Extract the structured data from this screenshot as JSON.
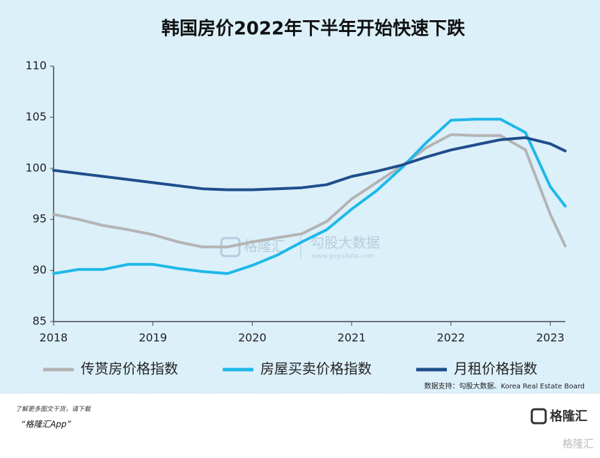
{
  "chart_data": {
    "type": "line",
    "title": "韩国房价2022年下半年开始快速下跌",
    "x": [
      2018,
      2018.25,
      2018.5,
      2018.75,
      2019,
      2019.25,
      2019.5,
      2019.75,
      2020,
      2020.25,
      2020.5,
      2020.75,
      2021,
      2021.25,
      2021.5,
      2021.75,
      2022,
      2022.25,
      2022.5,
      2022.75,
      2023,
      2023.15
    ],
    "xlim": [
      2018,
      2023.15
    ],
    "xticks": [
      2018,
      2019,
      2020,
      2021,
      2022,
      2023
    ],
    "ylim": [
      85,
      110
    ],
    "yticks": [
      85,
      90,
      95,
      100,
      105,
      110
    ],
    "series": [
      {
        "name": "传贳房价格指数",
        "color": "#b4b4b4",
        "values": [
          95.5,
          95.0,
          94.4,
          94.0,
          93.5,
          92.8,
          92.3,
          92.3,
          92.8,
          93.2,
          93.6,
          94.8,
          97.0,
          98.6,
          100.2,
          102.0,
          103.3,
          103.2,
          103.2,
          101.8,
          95.5,
          92.4
        ]
      },
      {
        "name": "房屋买卖价格指数",
        "color": "#1fb8e8",
        "values": [
          89.7,
          90.1,
          90.1,
          90.6,
          90.6,
          90.2,
          89.9,
          89.7,
          90.5,
          91.5,
          92.8,
          94.0,
          96.0,
          97.8,
          100.0,
          102.5,
          104.7,
          104.8,
          104.8,
          103.5,
          98.2,
          96.3
        ]
      },
      {
        "name": "月租价格指数",
        "color": "#1f4e8c",
        "values": [
          99.8,
          99.5,
          99.2,
          98.9,
          98.6,
          98.3,
          98.0,
          97.9,
          97.9,
          98.0,
          98.1,
          98.4,
          99.2,
          99.7,
          100.3,
          101.1,
          101.8,
          102.3,
          102.8,
          103.0,
          102.4,
          101.7
        ]
      }
    ],
    "source": "数据支持：勾股大数据、Korea Real Estate Board"
  },
  "watermark": {
    "brand": "格隆汇",
    "name": "勾股大数据",
    "url": "www.gogudata.com"
  },
  "footer": {
    "note": "了解更多图文干货，请下载",
    "app": "“格隆汇App”",
    "logo": "格隆汇",
    "corner": "格隆汇"
  }
}
